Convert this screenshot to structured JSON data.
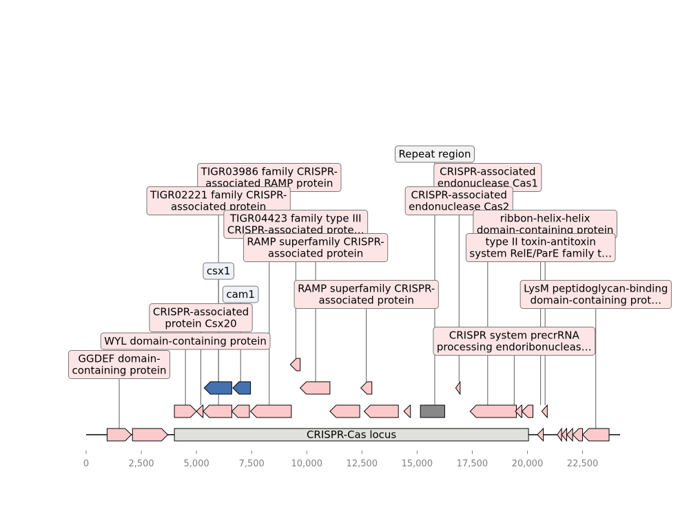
{
  "axis": {
    "min": 0,
    "max": 24200,
    "ticks": [
      {
        "value": 0,
        "label": "0"
      },
      {
        "value": 2500,
        "label": "2,500"
      },
      {
        "value": 5000,
        "label": "5,000"
      },
      {
        "value": 7500,
        "label": "7,500"
      },
      {
        "value": 10000,
        "label": "10,000"
      },
      {
        "value": 12500,
        "label": "12,500"
      },
      {
        "value": 15000,
        "label": "15,000"
      },
      {
        "value": 17500,
        "label": "17,500"
      },
      {
        "value": 20000,
        "label": "20,000"
      },
      {
        "value": 22500,
        "label": "22,500"
      }
    ]
  },
  "colors": {
    "gene": "#fccaca",
    "cas": "#4472b0",
    "repeat": "#888888",
    "locus": "#e0e0dc",
    "label_pink": "#fde5e6",
    "label_blue": "#eef2f8",
    "label_grey": "#f2f2f2"
  },
  "locus": {
    "label": "CRISPR-Cas locus",
    "start": 4000,
    "end": 20050
  },
  "features": [
    {
      "start": 950,
      "end": 2050,
      "strand": 1,
      "row": 0
    },
    {
      "start": 2100,
      "end": 3700,
      "strand": 1,
      "row": 0
    },
    {
      "start": 20450,
      "end": 20720,
      "strand": -1,
      "row": 0
    },
    {
      "start": 21350,
      "end": 21550,
      "strand": -1,
      "row": 0
    },
    {
      "start": 21550,
      "end": 21780,
      "strand": -1,
      "row": 0
    },
    {
      "start": 21780,
      "end": 22050,
      "strand": -1,
      "row": 0
    },
    {
      "start": 22050,
      "end": 22500,
      "strand": -1,
      "row": 0
    },
    {
      "start": 22500,
      "end": 23700,
      "strand": -1,
      "row": 0
    },
    {
      "start": 4000,
      "end": 5000,
      "strand": 1,
      "row": 1
    },
    {
      "start": 5000,
      "end": 5300,
      "strand": -1,
      "row": 1
    },
    {
      "start": 5300,
      "end": 6600,
      "strand": -1,
      "row": 1
    },
    {
      "start": 6600,
      "end": 7400,
      "strand": -1,
      "row": 1
    },
    {
      "start": 7450,
      "end": 9300,
      "strand": -1,
      "row": 1
    },
    {
      "start": 11050,
      "end": 12400,
      "strand": -1,
      "row": 1
    },
    {
      "start": 12600,
      "end": 14150,
      "strand": -1,
      "row": 1
    },
    {
      "start": 14400,
      "end": 14700,
      "strand": -1,
      "row": 1
    },
    {
      "start": 15150,
      "end": 16250,
      "strand": 0,
      "row": 1,
      "kind": "repeat"
    },
    {
      "start": 17400,
      "end": 19500,
      "strand": -1,
      "row": 1
    },
    {
      "start": 19450,
      "end": 19750,
      "strand": -1,
      "row": 1
    },
    {
      "start": 19750,
      "end": 20250,
      "strand": -1,
      "row": 1
    },
    {
      "start": 20650,
      "end": 20900,
      "strand": -1,
      "row": 1
    },
    {
      "start": 5350,
      "end": 6600,
      "strand": -1,
      "row": 2,
      "kind": "cas"
    },
    {
      "start": 6650,
      "end": 7450,
      "strand": -1,
      "row": 2,
      "kind": "cas"
    },
    {
      "start": 9700,
      "end": 11050,
      "strand": -1,
      "row": 2
    },
    {
      "start": 12450,
      "end": 12950,
      "strand": -1,
      "row": 2
    },
    {
      "start": 16750,
      "end": 16950,
      "strand": -1,
      "row": 2
    },
    {
      "start": 9250,
      "end": 9700,
      "strand": -1,
      "row": 3
    }
  ],
  "labels": [
    {
      "lines": [
        "Repeat region"
      ],
      "x": 15800,
      "level": 12,
      "style": "grey",
      "anchor_row": 1
    },
    {
      "lines": [
        "TIGR03986 family CRISPR-",
        "associated RAMP protein"
      ],
      "x": 8300,
      "level": 11,
      "style": "pink",
      "anchor_row": 1
    },
    {
      "lines": [
        "CRISPR-associated",
        "endonuclease Cas1"
      ],
      "x": 18200,
      "level": 11,
      "style": "pink",
      "anchor_row": 1
    },
    {
      "lines": [
        "TIGR02221 family CRISPR-",
        "associated protein"
      ],
      "x": 6000,
      "level": 10,
      "style": "pink",
      "anchor_row": 1
    },
    {
      "lines": [
        "CRISPR-associated",
        "endonuclease Cas2"
      ],
      "x": 16900,
      "level": 10,
      "style": "pink",
      "anchor_row": 2
    },
    {
      "lines": [
        "TIGR04423 family type III",
        "CRISPR-associated prote…"
      ],
      "x": 9500,
      "level": 9,
      "style": "pink",
      "anchor_row": 3
    },
    {
      "lines": [
        "ribbon-helix-helix",
        "domain-containing protein"
      ],
      "x": 20800,
      "level": 9,
      "style": "pink",
      "anchor_row": 1
    },
    {
      "lines": [
        "RAMP superfamily CRISPR-",
        "associated protein"
      ],
      "x": 10400,
      "level": 8,
      "style": "pink",
      "anchor_row": 2
    },
    {
      "lines": [
        "type II toxin-antitoxin",
        "system RelE/ParE family t…"
      ],
      "x": 20600,
      "level": 8,
      "style": "pink",
      "anchor_row": 1
    },
    {
      "lines": [
        "csx1"
      ],
      "x": 6000,
      "level": 7,
      "style": "blue",
      "anchor_row": 2
    },
    {
      "lines": [
        "cam1"
      ],
      "x": 7000,
      "level": 6,
      "style": "blue",
      "anchor_row": 2
    },
    {
      "lines": [
        "RAMP superfamily CRISPR-",
        "associated protein"
      ],
      "x": 12700,
      "level": 6,
      "style": "pink",
      "anchor_row": 2
    },
    {
      "lines": [
        "LysM peptidoglycan-binding",
        "domain-containing prot…"
      ],
      "x": 23100,
      "level": 6,
      "style": "pink",
      "anchor_row": 0
    },
    {
      "lines": [
        "CRISPR-associated",
        "protein Csx20"
      ],
      "x": 5200,
      "level": 5,
      "style": "pink",
      "anchor_row": 1
    },
    {
      "lines": [
        "CRISPR system precrRNA",
        "processing endoribonucleas…"
      ],
      "x": 19400,
      "level": 4,
      "style": "pink",
      "anchor_row": 1
    },
    {
      "lines": [
        "WYL domain-containing protein"
      ],
      "x": 4500,
      "level": 4,
      "style": "pink",
      "anchor_row": 1
    },
    {
      "lines": [
        "GGDEF domain-",
        "containing protein"
      ],
      "x": 1500,
      "level": 3,
      "style": "pink",
      "anchor_row": 0
    }
  ]
}
